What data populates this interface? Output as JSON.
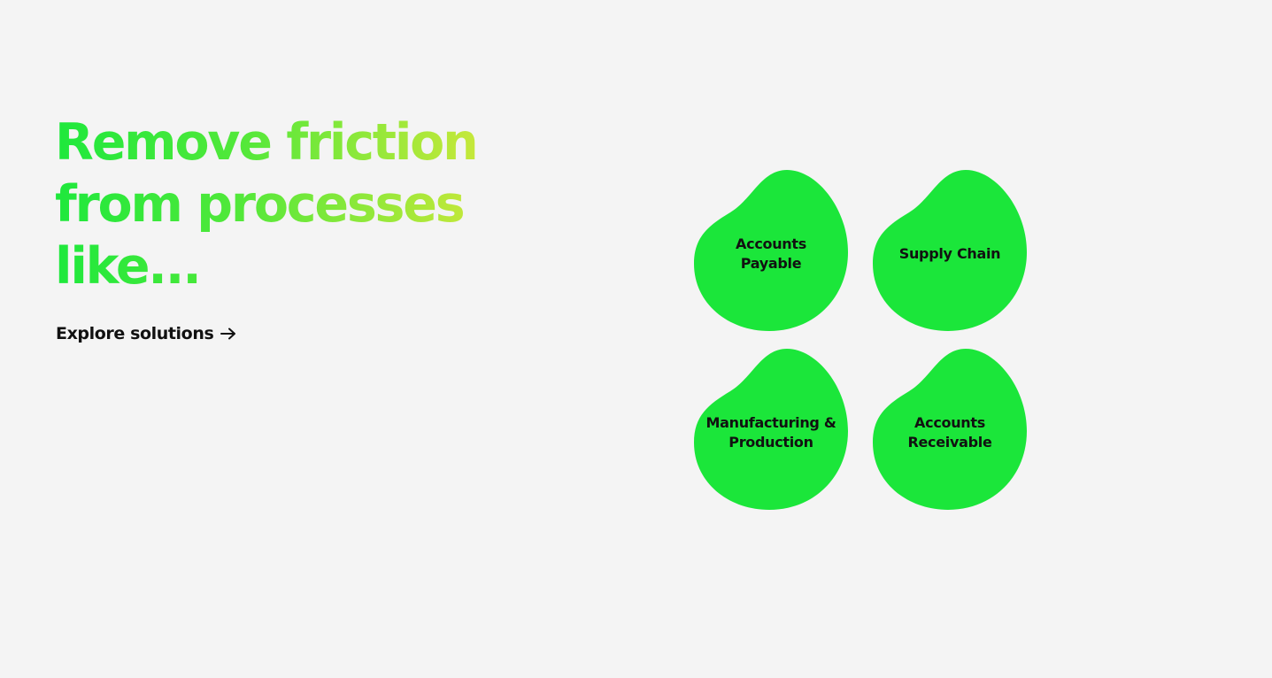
{
  "hero": {
    "headline_lines": [
      "Remove friction",
      "from processes",
      "like..."
    ],
    "explore_label": "Explore solutions",
    "explore_icon": "arrow-right-icon"
  },
  "colors": {
    "background": "#f4f4f4",
    "blob": "#1be63a",
    "gradient_start": "#1ee83c",
    "gradient_end": "#d8e83a",
    "text": "#111111"
  },
  "processes": [
    {
      "label": "Accounts\nPayable"
    },
    {
      "label": "Supply Chain"
    },
    {
      "label": "Manufacturing &\nProduction"
    },
    {
      "label": "Accounts\nReceivable"
    }
  ]
}
